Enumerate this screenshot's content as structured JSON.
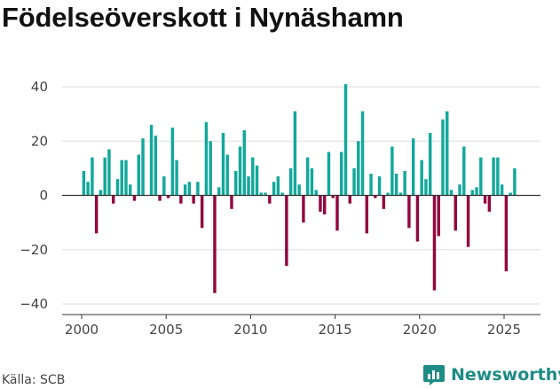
{
  "chart_data": {
    "type": "bar",
    "title": "Födelseöverskott i Nynäshamn",
    "xlabel": "",
    "ylabel": "",
    "ylim": [
      -40,
      45
    ],
    "xlim": [
      1999.0,
      2027.0
    ],
    "x_ticks": [
      2000,
      2005,
      2010,
      2015,
      2020,
      2025
    ],
    "x_tick_labels": [
      "2000",
      "2005",
      "2010",
      "2015",
      "2020",
      "2025"
    ],
    "y_ticks": [
      40,
      20,
      0,
      -20,
      -40
    ],
    "y_tick_labels": [
      "40",
      "20",
      "0",
      "−20",
      "−40"
    ],
    "grid": true,
    "colors": {
      "positive": "#12a89b",
      "negative": "#93063e",
      "grid": "#dddddd",
      "zero_line": "#333333"
    },
    "series": [
      {
        "name": "Födelseöverskott",
        "period": "quarterly",
        "start": 2000.0,
        "step": 0.25,
        "values": [
          9,
          5,
          14,
          -14,
          2,
          14,
          17,
          -3,
          6,
          13,
          13,
          4,
          -2,
          15,
          21,
          0,
          26,
          22,
          -2,
          7,
          -1,
          25,
          13,
          -3,
          4,
          5,
          -3,
          5,
          -12,
          27,
          20,
          -36,
          3,
          23,
          15,
          -5,
          9,
          18,
          24,
          7,
          14,
          11,
          1,
          1,
          -3,
          5,
          7,
          1,
          -26,
          10,
          31,
          4,
          -10,
          14,
          10,
          2,
          -6,
          -7,
          16,
          -1,
          -13,
          16,
          41,
          -3,
          10,
          20,
          31,
          -14,
          8,
          -1,
          7,
          -5,
          1,
          18,
          8,
          1,
          9,
          -12,
          21,
          -17,
          13,
          6,
          23,
          -35,
          -15,
          28,
          31,
          2,
          -13,
          4,
          18,
          -19,
          2,
          3,
          14,
          -3,
          -6,
          14,
          14,
          4,
          -28,
          1,
          10
        ]
      }
    ]
  },
  "footer": {
    "source": "Källa: SCB",
    "brand": "Newsworthy",
    "brand_icon": "newsworthy-logo-icon"
  }
}
